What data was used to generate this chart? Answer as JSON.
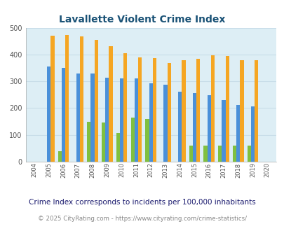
{
  "title": "Lavallette Violent Crime Index",
  "years": [
    2004,
    2005,
    2006,
    2007,
    2008,
    2009,
    2010,
    2011,
    2012,
    2013,
    2014,
    2015,
    2016,
    2017,
    2018,
    2019,
    2020
  ],
  "lavallette": [
    0,
    0,
    38,
    0,
    148,
    147,
    108,
    165,
    160,
    0,
    0,
    60,
    60,
    60,
    60,
    60,
    0
  ],
  "new_jersey": [
    0,
    355,
    350,
    330,
    330,
    313,
    310,
    310,
    292,
    288,
    261,
    256,
    248,
    231,
    211,
    207,
    0
  ],
  "national": [
    0,
    470,
    474,
    467,
    455,
    432,
    405,
    388,
    387,
    368,
    378,
    383,
    398,
    394,
    380,
    379,
    0
  ],
  "bar_width": 0.25,
  "ylim": [
    0,
    500
  ],
  "yticks": [
    0,
    100,
    200,
    300,
    400,
    500
  ],
  "color_lavallette": "#80c040",
  "color_nj": "#4a90d9",
  "color_national": "#f5a623",
  "bg_color": "#ddeef5",
  "title_color": "#1a5276",
  "legend_label_color": "#8b0000",
  "footnote1": "Crime Index corresponds to incidents per 100,000 inhabitants",
  "footnote2": "© 2025 CityRating.com - https://www.cityrating.com/crime-statistics/",
  "footnote1_color": "#1a1a6e",
  "footnote2_color": "#888888",
  "grid_color": "#c8dde8"
}
